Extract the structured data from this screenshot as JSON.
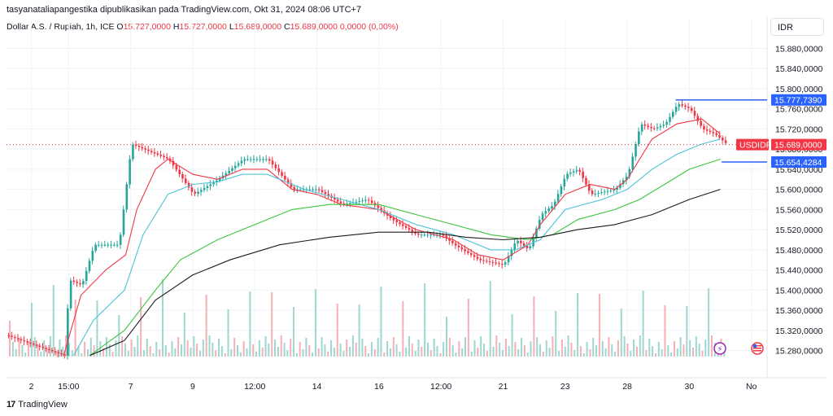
{
  "header": {
    "publisher_line": "tasyanataliapangestika dipublikasikan pada TradingView.com, Okt 31, 2024 08:06 UTC+7",
    "symbol": "Dollar A.S. / Rupiah, 1h, ICE",
    "o_label": "O",
    "o_value": "15.727,0000",
    "h_label": "H",
    "h_value": "15.727,0000",
    "l_label": "L",
    "l_value": "15.689,0000",
    "c_label": "C",
    "c_value": "15.689,0000",
    "change": "0,0000 (0,00%)",
    "currency": "IDR"
  },
  "footer": {
    "brand": "TradingView",
    "logo_glyph": "17"
  },
  "colors": {
    "up": "#26a69a",
    "down": "#f23645",
    "ema_red": "#f23645",
    "ema_cyan": "#4dc3d8",
    "ema_green": "#3dc43d",
    "ema_black": "#1c1c1c",
    "tag_blue": "#2962ff"
  },
  "chart_data": {
    "type": "line",
    "title": "Dollar A.S. / Rupiah, 1h, ICE",
    "y_ticks": [
      "15.880,0000",
      "15.840,0000",
      "15.800,0000",
      "15.760,0000",
      "15.720,0000",
      "15.680,0000",
      "15.640,0000",
      "15.600,0000",
      "15.560,0000",
      "15.520,0000",
      "15.480,0000",
      "15.440,0000",
      "15.400,0000",
      "15.360,0000",
      "15.320,0000",
      "15.280,0000"
    ],
    "y_tick_values": [
      15880,
      15840,
      15800,
      15760,
      15720,
      15680,
      15640,
      15600,
      15560,
      15520,
      15480,
      15440,
      15400,
      15360,
      15320,
      15280
    ],
    "ylim": [
      15268,
      15905
    ],
    "x_ticks": [
      "2",
      "15:00",
      "7",
      "9",
      "12:00",
      "14",
      "16",
      "12:00",
      "21",
      "23",
      "28",
      "30",
      "No"
    ],
    "x_tick_pos": [
      2,
      5,
      10,
      15,
      20,
      25,
      30,
      35,
      40,
      45,
      50,
      55,
      60
    ],
    "xlim": [
      0,
      61.2
    ],
    "price_series": [
      {
        "x": 0,
        "y": 15310
      },
      {
        "x": 4.6,
        "y": 15270
      },
      {
        "x": 5,
        "y": 15420
      },
      {
        "x": 6,
        "y": 15410
      },
      {
        "x": 7,
        "y": 15490
      },
      {
        "x": 9,
        "y": 15490
      },
      {
        "x": 10,
        "y": 15690
      },
      {
        "x": 11,
        "y": 15680
      },
      {
        "x": 13,
        "y": 15660
      },
      {
        "x": 15,
        "y": 15590
      },
      {
        "x": 17,
        "y": 15620
      },
      {
        "x": 19,
        "y": 15660
      },
      {
        "x": 21,
        "y": 15660
      },
      {
        "x": 23,
        "y": 15600
      },
      {
        "x": 25,
        "y": 15600
      },
      {
        "x": 27,
        "y": 15570
      },
      {
        "x": 29,
        "y": 15580
      },
      {
        "x": 31,
        "y": 15540
      },
      {
        "x": 33,
        "y": 15510
      },
      {
        "x": 35,
        "y": 15510
      },
      {
        "x": 36,
        "y": 15490
      },
      {
        "x": 38,
        "y": 15460
      },
      {
        "x": 40,
        "y": 15450
      },
      {
        "x": 41,
        "y": 15500
      },
      {
        "x": 42,
        "y": 15480
      },
      {
        "x": 43,
        "y": 15550
      },
      {
        "x": 44,
        "y": 15570
      },
      {
        "x": 45,
        "y": 15630
      },
      {
        "x": 46,
        "y": 15640
      },
      {
        "x": 47,
        "y": 15590
      },
      {
        "x": 49,
        "y": 15600
      },
      {
        "x": 50,
        "y": 15630
      },
      {
        "x": 51,
        "y": 15730
      },
      {
        "x": 52,
        "y": 15720
      },
      {
        "x": 53,
        "y": 15730
      },
      {
        "x": 54,
        "y": 15770
      },
      {
        "x": 55,
        "y": 15760
      },
      {
        "x": 56,
        "y": 15720
      },
      {
        "x": 57,
        "y": 15710
      },
      {
        "x": 58,
        "y": 15689
      }
    ],
    "series": [
      {
        "color": "#f23645",
        "values": [
          {
            "x": 4.6,
            "y": 15270
          },
          {
            "x": 6,
            "y": 15390
          },
          {
            "x": 8,
            "y": 15440
          },
          {
            "x": 9.6,
            "y": 15470
          },
          {
            "x": 10.5,
            "y": 15560
          },
          {
            "x": 12,
            "y": 15640
          },
          {
            "x": 13,
            "y": 15660
          },
          {
            "x": 15,
            "y": 15630
          },
          {
            "x": 17,
            "y": 15620
          },
          {
            "x": 19,
            "y": 15640
          },
          {
            "x": 21,
            "y": 15640
          },
          {
            "x": 23,
            "y": 15600
          },
          {
            "x": 25,
            "y": 15590
          },
          {
            "x": 27,
            "y": 15570
          },
          {
            "x": 30,
            "y": 15560
          },
          {
            "x": 33,
            "y": 15520
          },
          {
            "x": 36,
            "y": 15500
          },
          {
            "x": 38,
            "y": 15470
          },
          {
            "x": 40,
            "y": 15460
          },
          {
            "x": 42,
            "y": 15490
          },
          {
            "x": 43,
            "y": 15530
          },
          {
            "x": 45,
            "y": 15590
          },
          {
            "x": 47,
            "y": 15610
          },
          {
            "x": 49,
            "y": 15600
          },
          {
            "x": 50,
            "y": 15620
          },
          {
            "x": 51,
            "y": 15660
          },
          {
            "x": 52,
            "y": 15700
          },
          {
            "x": 54,
            "y": 15730
          },
          {
            "x": 56,
            "y": 15740
          },
          {
            "x": 57.5,
            "y": 15710
          }
        ]
      },
      {
        "color": "#4dc3d8",
        "values": [
          {
            "x": 5.4,
            "y": 15270
          },
          {
            "x": 7,
            "y": 15340
          },
          {
            "x": 9.5,
            "y": 15400
          },
          {
            "x": 11,
            "y": 15510
          },
          {
            "x": 13,
            "y": 15590
          },
          {
            "x": 15,
            "y": 15610
          },
          {
            "x": 17,
            "y": 15615
          },
          {
            "x": 19,
            "y": 15630
          },
          {
            "x": 21,
            "y": 15630
          },
          {
            "x": 24,
            "y": 15600
          },
          {
            "x": 27,
            "y": 15580
          },
          {
            "x": 30,
            "y": 15560
          },
          {
            "x": 33,
            "y": 15530
          },
          {
            "x": 36,
            "y": 15510
          },
          {
            "x": 39,
            "y": 15480
          },
          {
            "x": 41,
            "y": 15480
          },
          {
            "x": 43,
            "y": 15500
          },
          {
            "x": 45,
            "y": 15560
          },
          {
            "x": 48,
            "y": 15580
          },
          {
            "x": 50,
            "y": 15600
          },
          {
            "x": 52,
            "y": 15640
          },
          {
            "x": 54,
            "y": 15670
          },
          {
            "x": 56,
            "y": 15690
          },
          {
            "x": 57.5,
            "y": 15700
          }
        ]
      },
      {
        "color": "#3dc43d",
        "values": [
          {
            "x": 6.7,
            "y": 15270
          },
          {
            "x": 9.5,
            "y": 15320
          },
          {
            "x": 12,
            "y": 15400
          },
          {
            "x": 14,
            "y": 15460
          },
          {
            "x": 17,
            "y": 15500
          },
          {
            "x": 20,
            "y": 15530
          },
          {
            "x": 23,
            "y": 15560
          },
          {
            "x": 26,
            "y": 15570
          },
          {
            "x": 30,
            "y": 15570
          },
          {
            "x": 33,
            "y": 15550
          },
          {
            "x": 36,
            "y": 15530
          },
          {
            "x": 39,
            "y": 15510
          },
          {
            "x": 42,
            "y": 15500
          },
          {
            "x": 44,
            "y": 15510
          },
          {
            "x": 46,
            "y": 15540
          },
          {
            "x": 49,
            "y": 15560
          },
          {
            "x": 51,
            "y": 15580
          },
          {
            "x": 53,
            "y": 15610
          },
          {
            "x": 55,
            "y": 15640
          },
          {
            "x": 57.5,
            "y": 15660
          }
        ]
      },
      {
        "color": "#1c1c1c",
        "values": [
          {
            "x": 6.7,
            "y": 15270
          },
          {
            "x": 9.5,
            "y": 15300
          },
          {
            "x": 12,
            "y": 15380
          },
          {
            "x": 15,
            "y": 15430
          },
          {
            "x": 18,
            "y": 15460
          },
          {
            "x": 22,
            "y": 15490
          },
          {
            "x": 26,
            "y": 15505
          },
          {
            "x": 30,
            "y": 15515
          },
          {
            "x": 34,
            "y": 15515
          },
          {
            "x": 37,
            "y": 15505
          },
          {
            "x": 40,
            "y": 15500
          },
          {
            "x": 43,
            "y": 15505
          },
          {
            "x": 46,
            "y": 15520
          },
          {
            "x": 49,
            "y": 15530
          },
          {
            "x": 52,
            "y": 15550
          },
          {
            "x": 55,
            "y": 15580
          },
          {
            "x": 57.5,
            "y": 15600
          }
        ]
      }
    ],
    "price_tags": [
      {
        "label": "15.777,7390",
        "value": 15777.739,
        "color": "#2962ff",
        "x_start": 53.9
      },
      {
        "label": "USDIDR",
        "value": 15689,
        "color": "#f23645",
        "x_start": 58
      },
      {
        "label": "15.689,0000",
        "value": 15689,
        "color": "#f23645",
        "x_start": 0
      },
      {
        "label": "15.654,4284",
        "value": 15654.428,
        "color": "#2962ff",
        "x_start": 57.6
      }
    ],
    "grid": true,
    "volume": true
  }
}
